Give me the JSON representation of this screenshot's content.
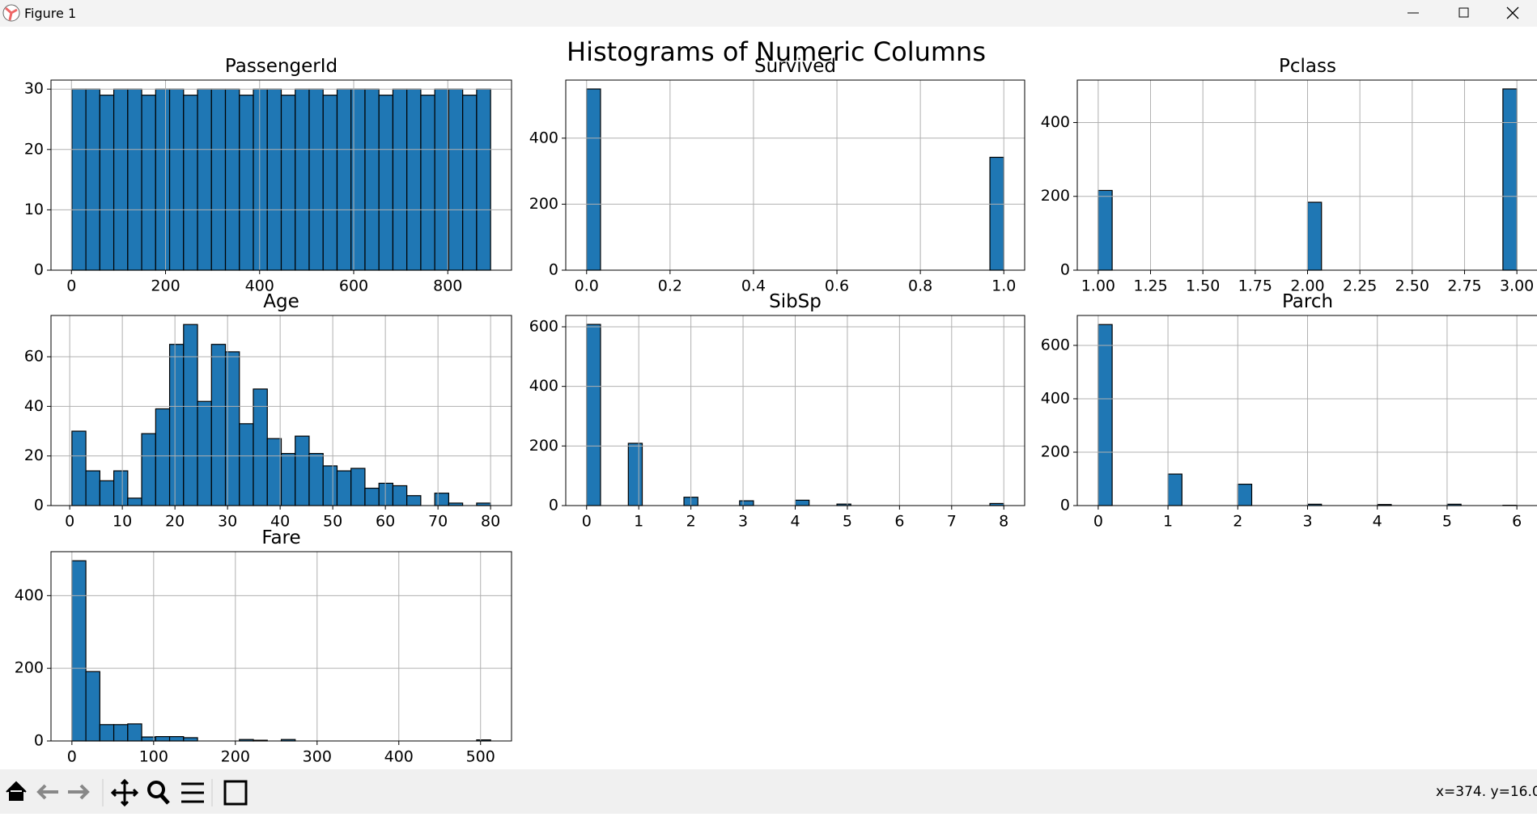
{
  "window": {
    "title": "Figure 1",
    "status": "x=374. y=16.0"
  },
  "figure_title": "Histograms of Numeric Columns",
  "chart_data": [
    {
      "type": "histogram",
      "title": "PassengerId",
      "color": "#1f77b4",
      "edge_color": "#000000",
      "grid": true,
      "bins": [
        1,
        30.67,
        60.33,
        90,
        119.67,
        149.33,
        179,
        208.67,
        238.33,
        268,
        297.67,
        327.33,
        357,
        386.67,
        416.33,
        446,
        475.67,
        505.33,
        535,
        564.67,
        594.33,
        624,
        653.67,
        683.33,
        713,
        742.67,
        772.33,
        802,
        831.67,
        861.33,
        891
      ],
      "values": [
        30,
        30,
        29,
        30,
        30,
        29,
        30,
        30,
        29,
        30,
        30,
        30,
        29,
        30,
        30,
        29,
        30,
        30,
        29,
        30,
        30,
        30,
        29,
        30,
        30,
        29,
        30,
        30,
        29,
        30
      ],
      "xlim": [
        -43.5,
        935.5
      ],
      "ylim": [
        0,
        31.5
      ],
      "xticks": [
        0,
        200,
        400,
        600,
        800
      ],
      "yticks": [
        0,
        10,
        20,
        30
      ]
    },
    {
      "type": "histogram",
      "title": "Survived",
      "color": "#1f77b4",
      "edge_color": "#000000",
      "grid": true,
      "bins": [
        0,
        0.0333,
        0.0667,
        0.1,
        0.1333,
        0.1667,
        0.2,
        0.2333,
        0.2667,
        0.3,
        0.3333,
        0.3667,
        0.4,
        0.4333,
        0.4667,
        0.5,
        0.5333,
        0.5667,
        0.6,
        0.6333,
        0.6667,
        0.7,
        0.7333,
        0.7667,
        0.8,
        0.8333,
        0.8667,
        0.9,
        0.9333,
        0.9667,
        1
      ],
      "values": [
        549,
        0,
        0,
        0,
        0,
        0,
        0,
        0,
        0,
        0,
        0,
        0,
        0,
        0,
        0,
        0,
        0,
        0,
        0,
        0,
        0,
        0,
        0,
        0,
        0,
        0,
        0,
        0,
        0,
        342
      ],
      "xlim": [
        -0.05,
        1.05
      ],
      "ylim": [
        0,
        576
      ],
      "xticks": [
        {
          "value": 0,
          "label": "0.0"
        },
        {
          "value": 0.2,
          "label": "0.2"
        },
        {
          "value": 0.4,
          "label": "0.4"
        },
        {
          "value": 0.6,
          "label": "0.6"
        },
        {
          "value": 0.8,
          "label": "0.8"
        },
        {
          "value": 1,
          "label": "1.0"
        }
      ],
      "yticks": [
        0,
        200,
        400
      ]
    },
    {
      "type": "histogram",
      "title": "Pclass",
      "color": "#1f77b4",
      "edge_color": "#000000",
      "grid": true,
      "bins": [
        1,
        1.0667,
        1.1333,
        1.2,
        1.2667,
        1.3333,
        1.4,
        1.4667,
        1.5333,
        1.6,
        1.6667,
        1.7333,
        1.8,
        1.8667,
        1.9333,
        2,
        2.0667,
        2.1333,
        2.2,
        2.2667,
        2.3333,
        2.4,
        2.4667,
        2.5333,
        2.6,
        2.6667,
        2.7333,
        2.8,
        2.8667,
        2.9333,
        3
      ],
      "values": [
        216,
        0,
        0,
        0,
        0,
        0,
        0,
        0,
        0,
        0,
        0,
        0,
        0,
        0,
        0,
        184,
        0,
        0,
        0,
        0,
        0,
        0,
        0,
        0,
        0,
        0,
        0,
        0,
        0,
        491
      ],
      "xlim": [
        0.9,
        3.1
      ],
      "ylim": [
        0,
        515
      ],
      "xticks": [
        {
          "value": 1,
          "label": "1.00"
        },
        {
          "value": 1.25,
          "label": "1.25"
        },
        {
          "value": 1.5,
          "label": "1.50"
        },
        {
          "value": 1.75,
          "label": "1.75"
        },
        {
          "value": 2,
          "label": "2.00"
        },
        {
          "value": 2.25,
          "label": "2.25"
        },
        {
          "value": 2.5,
          "label": "2.50"
        },
        {
          "value": 2.75,
          "label": "2.75"
        },
        {
          "value": 3,
          "label": "3.00"
        }
      ],
      "yticks": [
        0,
        200,
        400
      ]
    },
    {
      "type": "histogram",
      "title": "Age",
      "color": "#1f77b4",
      "edge_color": "#000000",
      "grid": true,
      "bins": [
        0.42,
        3.07,
        5.73,
        8.38,
        11.03,
        13.68,
        16.34,
        18.99,
        21.64,
        24.29,
        26.95,
        29.6,
        32.25,
        34.9,
        37.56,
        40.21,
        42.86,
        45.51,
        48.17,
        50.82,
        53.47,
        56.12,
        58.78,
        61.43,
        64.08,
        66.73,
        69.39,
        72.04,
        74.69,
        77.35,
        80
      ],
      "values": [
        30,
        14,
        10,
        14,
        3,
        29,
        39,
        65,
        73,
        42,
        65,
        62,
        33,
        47,
        27,
        21,
        28,
        21,
        16,
        14,
        15,
        7,
        9,
        8,
        4,
        0,
        5,
        1,
        0,
        1
      ],
      "xlim": [
        -3.56,
        83.98
      ],
      "ylim": [
        0,
        76.65
      ],
      "xticks": [
        0,
        10,
        20,
        30,
        40,
        50,
        60,
        70,
        80
      ],
      "yticks": [
        0,
        20,
        40,
        60
      ]
    },
    {
      "type": "histogram",
      "title": "SibSp",
      "color": "#1f77b4",
      "edge_color": "#000000",
      "grid": true,
      "bins": [
        0,
        0.2667,
        0.5333,
        0.8,
        1.0667,
        1.3333,
        1.6,
        1.8667,
        2.1333,
        2.4,
        2.6667,
        2.9333,
        3.2,
        3.4667,
        3.7333,
        4,
        4.2667,
        4.5333,
        4.8,
        5.0667,
        5.3333,
        5.6,
        5.8667,
        6.1333,
        6.4,
        6.6667,
        6.9333,
        7.2,
        7.4667,
        7.7333,
        8
      ],
      "values": [
        608,
        0,
        0,
        209,
        0,
        0,
        0,
        28,
        0,
        0,
        0,
        16,
        0,
        0,
        0,
        18,
        0,
        0,
        5,
        0,
        0,
        0,
        0,
        0,
        0,
        0,
        0,
        0,
        0,
        7
      ],
      "xlim": [
        -0.4,
        8.4
      ],
      "ylim": [
        0,
        638
      ],
      "xticks": [
        0,
        1,
        2,
        3,
        4,
        5,
        6,
        7,
        8
      ],
      "yticks": [
        0,
        200,
        400,
        600
      ]
    },
    {
      "type": "histogram",
      "title": "Parch",
      "color": "#1f77b4",
      "edge_color": "#000000",
      "grid": true,
      "bins": [
        0,
        0.2,
        0.4,
        0.6,
        0.8,
        1,
        1.2,
        1.4,
        1.6,
        1.8,
        2,
        2.2,
        2.4,
        2.6,
        2.8,
        3,
        3.2,
        3.4,
        3.6,
        3.8,
        4,
        4.2,
        4.4,
        4.6,
        4.8,
        5,
        5.2,
        5.4,
        5.6,
        5.8,
        6
      ],
      "values": [
        678,
        0,
        0,
        0,
        0,
        118,
        0,
        0,
        0,
        0,
        80,
        0,
        0,
        0,
        0,
        5,
        0,
        0,
        0,
        0,
        4,
        0,
        0,
        0,
        0,
        5,
        0,
        0,
        0,
        1
      ],
      "xlim": [
        -0.3,
        6.3
      ],
      "ylim": [
        0,
        712
      ],
      "xticks": [
        0,
        1,
        2,
        3,
        4,
        5,
        6
      ],
      "yticks": [
        0,
        200,
        400,
        600
      ]
    },
    {
      "type": "histogram",
      "title": "Fare",
      "color": "#1f77b4",
      "edge_color": "#000000",
      "grid": true,
      "bins": [
        0,
        17.08,
        34.16,
        51.23,
        68.31,
        85.39,
        102.47,
        119.54,
        136.62,
        153.7,
        170.78,
        187.85,
        204.93,
        222.01,
        239.09,
        256.16,
        273.24,
        290.32,
        307.4,
        324.47,
        341.55,
        358.63,
        375.71,
        392.78,
        409.86,
        426.94,
        444.02,
        461.09,
        478.17,
        495.25,
        512.33
      ],
      "values": [
        496,
        191,
        45,
        45,
        47,
        11,
        12,
        12,
        9,
        0,
        0,
        0,
        4,
        2,
        0,
        4,
        0,
        0,
        0,
        0,
        0,
        0,
        0,
        0,
        0,
        0,
        0,
        0,
        0,
        3
      ],
      "xlim": [
        -25.6,
        537.9
      ],
      "ylim": [
        0,
        521
      ],
      "xticks": [
        0,
        100,
        200,
        300,
        400,
        500
      ],
      "yticks": [
        0,
        200,
        400
      ]
    }
  ]
}
